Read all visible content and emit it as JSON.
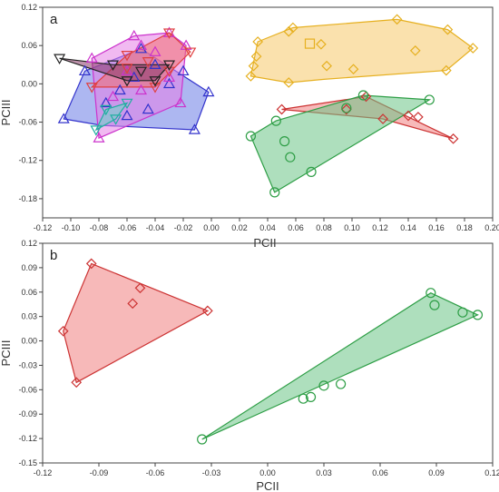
{
  "chart_data": [
    {
      "type": "scatter",
      "panel_label": "a",
      "xlabel": "PCII",
      "ylabel": "PCIII",
      "xlim": [
        -0.12,
        0.2
      ],
      "ylim": [
        -0.21,
        0.12
      ],
      "xticks": [
        "-0.12",
        "-0.10",
        "-0.08",
        "-0.06",
        "-0.04",
        "-0.02",
        "0.00",
        "0.02",
        "0.04",
        "0.06",
        "0.08",
        "0.10",
        "0.12",
        "0.14",
        "0.16",
        "0.18",
        "0.20"
      ],
      "xtick_values": [
        -0.12,
        -0.1,
        -0.08,
        -0.06,
        -0.04,
        -0.02,
        0.0,
        0.02,
        0.04,
        0.06,
        0.08,
        0.1,
        0.12,
        0.14,
        0.16,
        0.18,
        0.2
      ],
      "yticks": [
        "0.12",
        "0.06",
        "0.00",
        "-0.06",
        "-0.12",
        "-0.18"
      ],
      "ytick_values": [
        0.12,
        0.06,
        0.0,
        -0.06,
        -0.12,
        -0.18
      ],
      "grid": false,
      "series": [
        {
          "marker": "diamond",
          "color": "#e6b020",
          "fill": "#f5c96a",
          "hull": [
            [
              0.028,
              0.012
            ],
            [
              0.033,
              0.066
            ],
            [
              0.058,
              0.088
            ],
            [
              0.132,
              0.101
            ],
            [
              0.168,
              0.085
            ],
            [
              0.186,
              0.056
            ],
            [
              0.167,
              0.021
            ],
            [
              0.08,
              0.007
            ],
            [
              0.055,
              0.002
            ]
          ],
          "points": [
            [
              0.028,
              0.012
            ],
            [
              0.033,
              0.066
            ],
            [
              0.058,
              0.088
            ],
            [
              0.132,
              0.101
            ],
            [
              0.168,
              0.085
            ],
            [
              0.186,
              0.056
            ],
            [
              0.167,
              0.021
            ],
            [
              0.055,
              0.002
            ],
            [
              0.03,
              0.028
            ],
            [
              0.032,
              0.043
            ],
            [
              0.055,
              0.082
            ],
            [
              0.078,
              0.062
            ],
            [
              0.082,
              0.028
            ],
            [
              0.101,
              0.023
            ],
            [
              0.145,
              0.052
            ]
          ],
          "extra_square": [
            0.07,
            0.063
          ]
        },
        {
          "marker": "diamond",
          "color": "#cc3333",
          "fill": "#f08080",
          "hull": [
            [
              0.05,
              -0.04
            ],
            [
              0.11,
              -0.02
            ],
            [
              0.172,
              -0.086
            ],
            [
              0.122,
              -0.055
            ]
          ],
          "points": [
            [
              0.05,
              -0.04
            ],
            [
              0.11,
              -0.02
            ],
            [
              0.172,
              -0.086
            ],
            [
              0.122,
              -0.055
            ],
            [
              0.14,
              -0.05
            ],
            [
              0.096,
              -0.04
            ],
            [
              0.147,
              -0.052
            ]
          ]
        },
        {
          "marker": "circle",
          "color": "#2e9e46",
          "fill": "#6cc586",
          "hull": [
            [
              0.028,
              -0.082
            ],
            [
              0.046,
              -0.058
            ],
            [
              0.108,
              -0.018
            ],
            [
              0.155,
              -0.025
            ],
            [
              0.045,
              -0.17
            ]
          ],
          "points": [
            [
              0.028,
              -0.082
            ],
            [
              0.046,
              -0.058
            ],
            [
              0.108,
              -0.018
            ],
            [
              0.155,
              -0.025
            ],
            [
              0.045,
              -0.17
            ],
            [
              0.096,
              -0.038
            ],
            [
              0.052,
              -0.09
            ],
            [
              0.056,
              -0.115
            ],
            [
              0.071,
              -0.138
            ]
          ]
        },
        {
          "marker": "triangle-up",
          "color": "#3333cc",
          "fill": "#6a7be6",
          "hull": [
            [
              -0.105,
              -0.055
            ],
            [
              -0.09,
              0.02
            ],
            [
              -0.05,
              0.055
            ],
            [
              -0.002,
              -0.013
            ],
            [
              -0.012,
              -0.072
            ],
            [
              -0.078,
              -0.065
            ]
          ],
          "points": [
            [
              -0.105,
              -0.055
            ],
            [
              -0.09,
              0.02
            ],
            [
              -0.05,
              0.055
            ],
            [
              -0.002,
              -0.013
            ],
            [
              -0.012,
              -0.072
            ],
            [
              -0.075,
              -0.03
            ],
            [
              -0.065,
              -0.01
            ],
            [
              -0.055,
              0.01
            ],
            [
              -0.045,
              -0.04
            ],
            [
              -0.04,
              0.03
            ],
            [
              -0.03,
              0.0
            ],
            [
              -0.02,
              0.02
            ],
            [
              -0.06,
              -0.05
            ]
          ]
        },
        {
          "marker": "triangle-up",
          "color": "#cc33cc",
          "fill": "#e680e6",
          "hull": [
            [
              -0.08,
              -0.085
            ],
            [
              -0.085,
              0.04
            ],
            [
              -0.055,
              0.075
            ],
            [
              -0.03,
              0.08
            ],
            [
              -0.018,
              0.06
            ],
            [
              -0.022,
              -0.03
            ]
          ],
          "points": [
            [
              -0.08,
              -0.085
            ],
            [
              -0.085,
              0.04
            ],
            [
              -0.055,
              0.075
            ],
            [
              -0.03,
              0.08
            ],
            [
              -0.018,
              0.06
            ],
            [
              -0.022,
              -0.03
            ],
            [
              -0.07,
              -0.02
            ],
            [
              -0.06,
              0.02
            ],
            [
              -0.05,
              -0.01
            ],
            [
              -0.04,
              0.05
            ],
            [
              -0.03,
              0.01
            ],
            [
              -0.05,
              0.06
            ]
          ]
        },
        {
          "marker": "triangle-down",
          "color": "#e04040",
          "fill": "#f07070",
          "hull": [
            [
              -0.085,
              -0.005
            ],
            [
              -0.06,
              0.045
            ],
            [
              -0.03,
              0.08
            ],
            [
              -0.015,
              0.05
            ],
            [
              -0.04,
              -0.005
            ]
          ],
          "points": [
            [
              -0.085,
              -0.005
            ],
            [
              -0.06,
              0.045
            ],
            [
              -0.03,
              0.08
            ],
            [
              -0.015,
              0.05
            ],
            [
              -0.04,
              -0.005
            ],
            [
              -0.06,
              0.025
            ],
            [
              -0.045,
              0.035
            ],
            [
              -0.03,
              0.02
            ]
          ]
        },
        {
          "marker": "triangle-down",
          "color": "#222222",
          "fill": "#8b3a6a",
          "hull": [
            [
              -0.108,
              0.04
            ],
            [
              -0.07,
              0.03
            ],
            [
              -0.03,
              0.03
            ],
            [
              -0.04,
              0.005
            ],
            [
              -0.06,
              0.005
            ]
          ],
          "points": [
            [
              -0.108,
              0.04
            ],
            [
              -0.07,
              0.03
            ],
            [
              -0.03,
              0.03
            ],
            [
              -0.04,
              0.005
            ],
            [
              -0.06,
              0.005
            ],
            [
              -0.05,
              0.02
            ]
          ]
        },
        {
          "marker": "triangle-down",
          "color": "#20b0a0",
          "fill": "#70d8c8",
          "hull": [
            [
              -0.082,
              -0.072
            ],
            [
              -0.075,
              -0.04
            ],
            [
              -0.06,
              -0.03
            ],
            [
              -0.068,
              -0.055
            ]
          ],
          "points": [
            [
              -0.082,
              -0.072
            ],
            [
              -0.075,
              -0.04
            ],
            [
              -0.06,
              -0.03
            ],
            [
              -0.068,
              -0.055
            ]
          ]
        }
      ]
    },
    {
      "type": "scatter",
      "panel_label": "b",
      "xlabel": "PCII",
      "ylabel": "PCIII",
      "xlim": [
        -0.12,
        0.12
      ],
      "ylim": [
        -0.15,
        0.12
      ],
      "xticks": [
        "-0.12",
        "-0.09",
        "-0.06",
        "-0.03",
        "0.00",
        "0.03",
        "0.06",
        "0.09",
        "0.12"
      ],
      "xtick_values": [
        -0.12,
        -0.09,
        -0.06,
        -0.03,
        0.0,
        0.03,
        0.06,
        0.09,
        0.12
      ],
      "yticks": [
        "0.12",
        "0.09",
        "0.06",
        "0.03",
        "0.00",
        "-0.03",
        "-0.06",
        "-0.09",
        "-0.12",
        "-0.15"
      ],
      "ytick_values": [
        0.12,
        0.09,
        0.06,
        0.03,
        0.0,
        -0.03,
        -0.06,
        -0.09,
        -0.12,
        -0.15
      ],
      "grid": false,
      "series": [
        {
          "marker": "diamond",
          "color": "#cc3333",
          "fill": "#f08080",
          "hull": [
            [
              -0.094,
              0.095
            ],
            [
              -0.032,
              0.037
            ],
            [
              -0.102,
              -0.051
            ],
            [
              -0.109,
              0.012
            ]
          ],
          "points": [
            [
              -0.094,
              0.095
            ],
            [
              -0.032,
              0.037
            ],
            [
              -0.102,
              -0.051
            ],
            [
              -0.109,
              0.012
            ],
            [
              -0.068,
              0.065
            ],
            [
              -0.072,
              0.046
            ]
          ]
        },
        {
          "marker": "circle",
          "color": "#2e9e46",
          "fill": "#6cc586",
          "hull": [
            [
              -0.035,
              -0.121
            ],
            [
              0.087,
              0.059
            ],
            [
              0.112,
              0.032
            ]
          ],
          "points": [
            [
              -0.035,
              -0.121
            ],
            [
              0.087,
              0.059
            ],
            [
              0.112,
              0.032
            ],
            [
              0.089,
              0.044
            ],
            [
              0.104,
              0.035
            ],
            [
              0.039,
              -0.053
            ],
            [
              0.03,
              -0.055
            ],
            [
              0.023,
              -0.069
            ],
            [
              0.019,
              -0.071
            ]
          ]
        }
      ]
    }
  ]
}
